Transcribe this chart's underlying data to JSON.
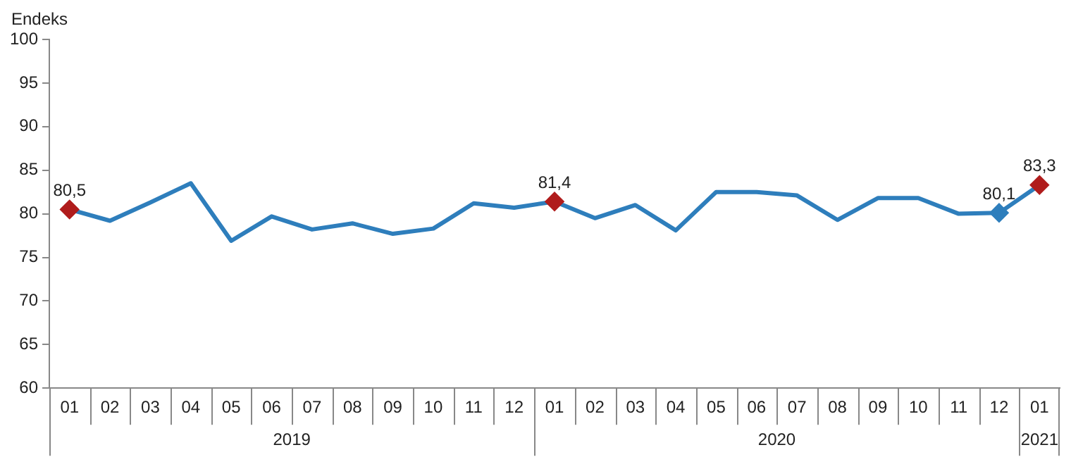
{
  "chart_data": {
    "type": "line",
    "ylabel": "Endeks",
    "categories": [
      "01",
      "02",
      "03",
      "04",
      "05",
      "06",
      "07",
      "08",
      "09",
      "10",
      "11",
      "12",
      "01",
      "02",
      "03",
      "04",
      "05",
      "06",
      "07",
      "08",
      "09",
      "10",
      "11",
      "12",
      "01"
    ],
    "series": [
      {
        "color": "#2e7ebc",
        "values": [
          80.5,
          79.2,
          81.3,
          83.5,
          76.9,
          79.7,
          78.2,
          78.9,
          77.7,
          78.3,
          81.2,
          80.7,
          81.4,
          79.5,
          81.0,
          78.1,
          82.5,
          82.5,
          82.1,
          79.3,
          81.8,
          81.8,
          80.0,
          80.1,
          83.3
        ],
        "value_labels": [
          "80,5",
          null,
          null,
          null,
          null,
          null,
          null,
          null,
          null,
          null,
          null,
          null,
          "81,4",
          null,
          null,
          null,
          null,
          null,
          null,
          null,
          null,
          null,
          null,
          "80,1",
          "83,3"
        ],
        "colors": [
          "#b01c1c",
          null,
          null,
          null,
          null,
          null,
          null,
          null,
          null,
          null,
          null,
          null,
          "#b01c1c",
          null,
          null,
          null,
          null,
          null,
          null,
          null,
          null,
          null,
          null,
          "#2e7ebc",
          "#b01c1c"
        ]
      }
    ],
    "annotations": [
      "2019",
      "2020",
      "2021"
    ],
    "ylim": [
      60,
      100
    ],
    "yticks": [
      60,
      65,
      70,
      75,
      80,
      85,
      90,
      95,
      100
    ],
    "grid": false,
    "legend": false,
    "line_style": "solid"
  }
}
